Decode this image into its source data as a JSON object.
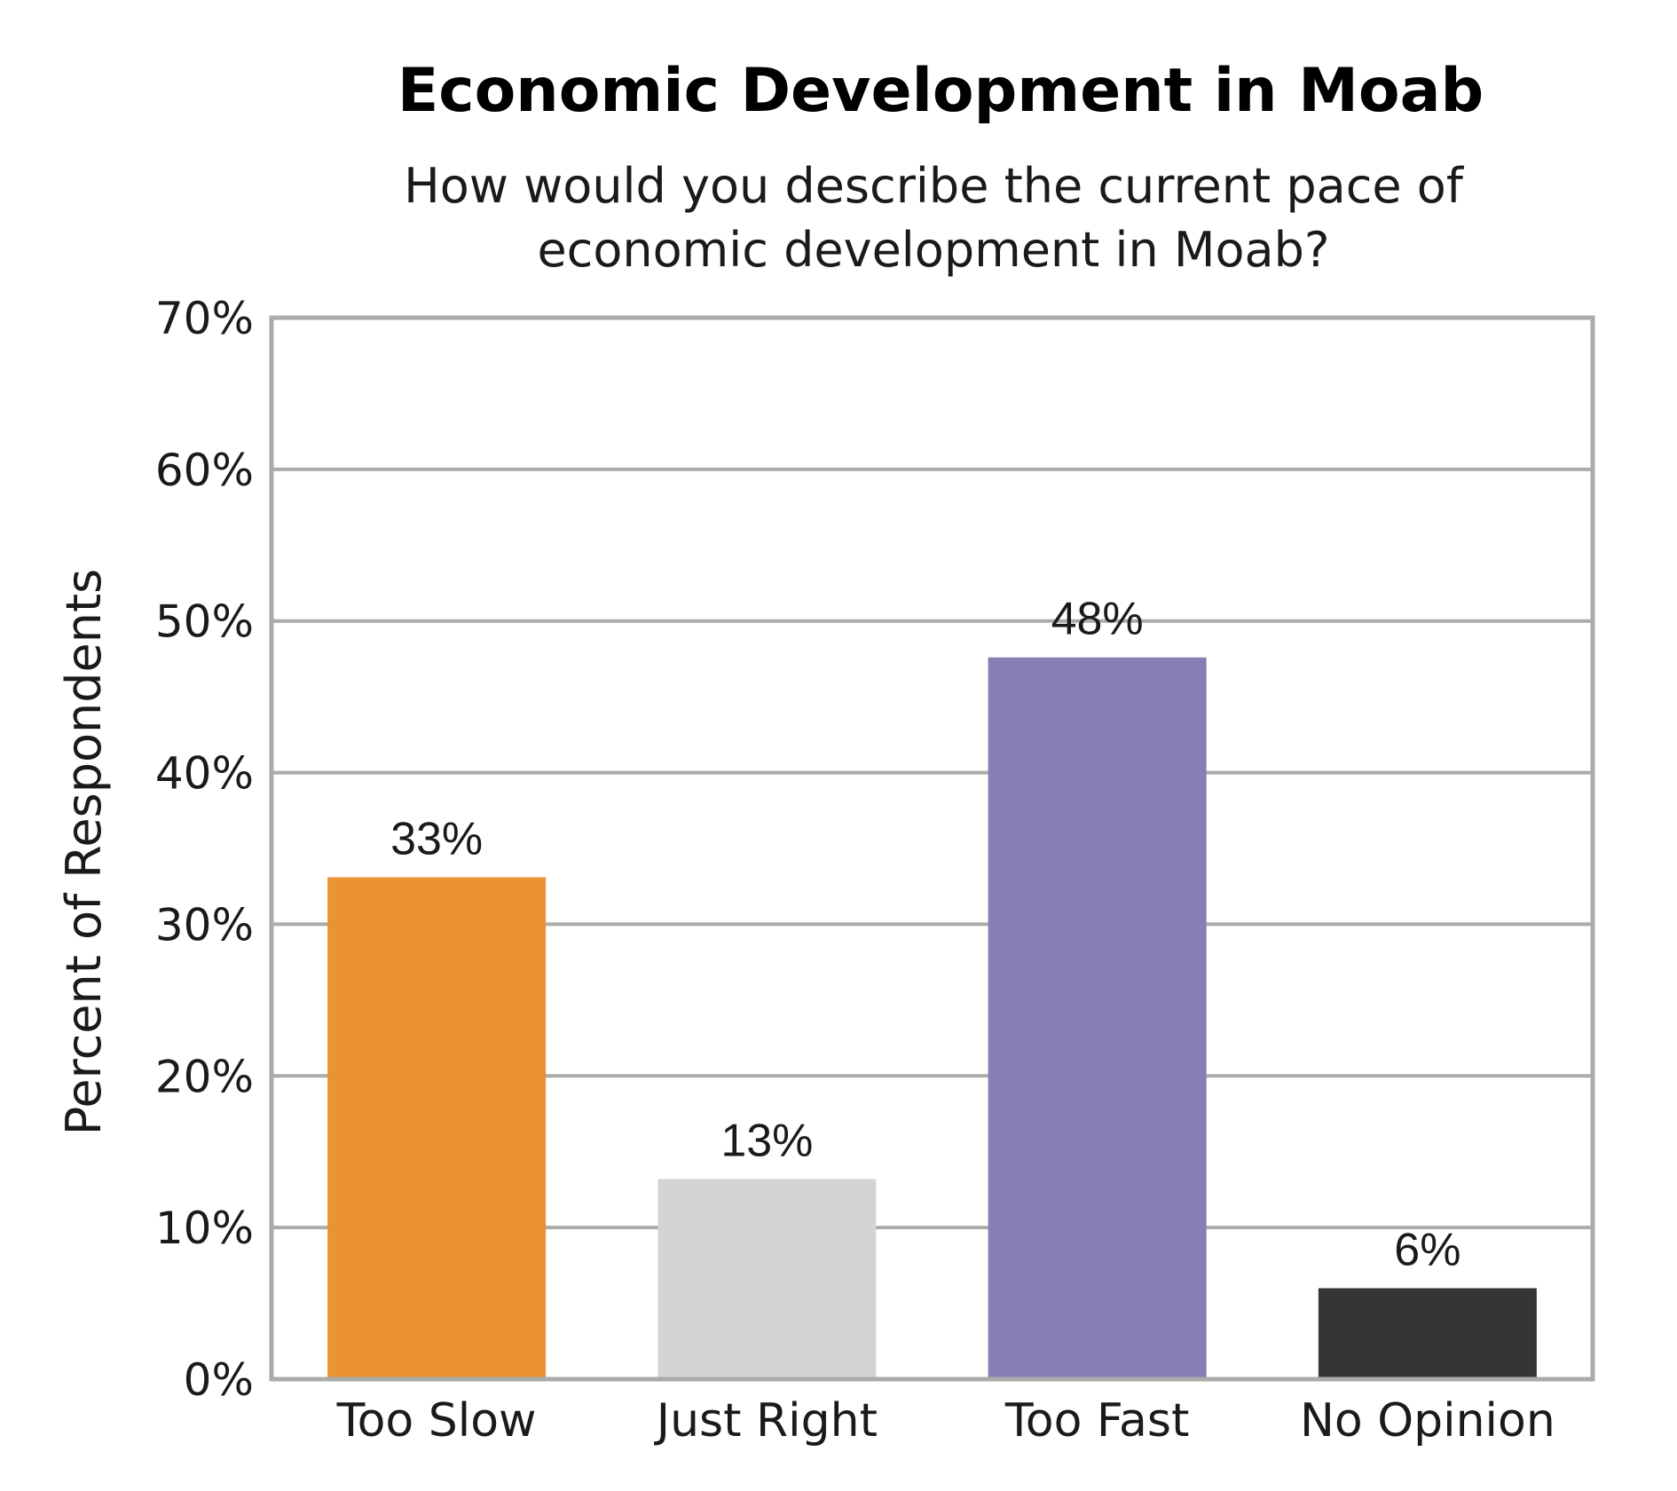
{
  "chart_data": {
    "type": "bar",
    "title": "Economic Development in Moab",
    "subtitle_lines": [
      "How would you describe the current pace of",
      "economic development in Moab?"
    ],
    "xlabel": "",
    "ylabel": "Percent of Respondents",
    "ylim": [
      0,
      70
    ],
    "y_ticks": [
      0,
      10,
      20,
      30,
      40,
      50,
      60,
      70
    ],
    "y_tick_labels": [
      "0%",
      "10%",
      "20%",
      "30%",
      "40%",
      "50%",
      "60%",
      "70%"
    ],
    "categories": [
      "Too Slow",
      "Just Right",
      "Too Fast",
      "No Opinion"
    ],
    "values": [
      33.1,
      13.2,
      47.6,
      6.0
    ],
    "data_labels": [
      "33%",
      "13%",
      "48%",
      "6%"
    ],
    "colors": [
      "#EB9234",
      "#D4D4D4",
      "#887DB5",
      "#353535"
    ],
    "grid": true,
    "gridline_color": "#ABABAB",
    "legend": "none"
  }
}
